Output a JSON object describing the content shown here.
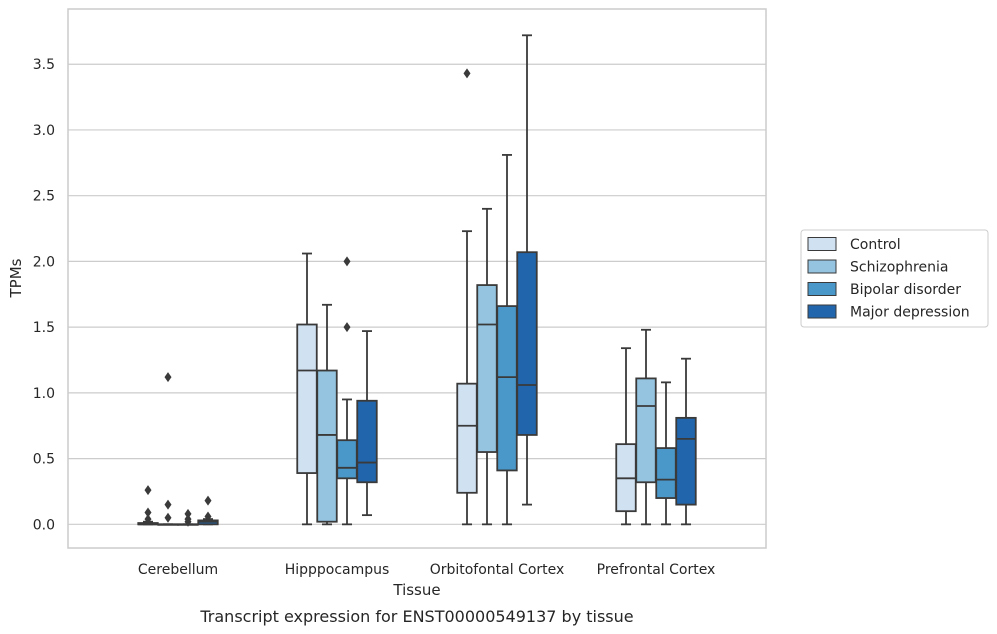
{
  "caption": "Transcript expression for ENST00000549137 by tissue",
  "chart_data": {
    "type": "box",
    "xlabel": "Tissue",
    "ylabel": "TPMs",
    "ylim": [
      -0.18,
      3.92
    ],
    "yticks": [
      "0.0",
      "0.5",
      "1.0",
      "1.5",
      "2.0",
      "2.5",
      "3.0",
      "3.5"
    ],
    "grid": true,
    "legend_position": "right",
    "categories": [
      "Cerebellum",
      "Hipppocampus",
      "Orbitofontal Cortex",
      "Prefrontal Cortex"
    ],
    "series": [
      {
        "name": "Control",
        "color": "#d0e1f2",
        "boxes": [
          {
            "min": 0,
            "q1": 0,
            "median": 0,
            "q3": 0.01,
            "max": 0.02,
            "outliers": [
              0.26,
              0.09,
              0.04
            ]
          },
          {
            "min": 0,
            "q1": 0.39,
            "median": 1.17,
            "q3": 1.52,
            "max": 2.06,
            "outliers": []
          },
          {
            "min": 0,
            "q1": 0.24,
            "median": 0.75,
            "q3": 1.07,
            "max": 2.23,
            "outliers": [
              3.43
            ]
          },
          {
            "min": 0,
            "q1": 0.1,
            "median": 0.35,
            "q3": 0.61,
            "max": 1.34,
            "outliers": []
          }
        ]
      },
      {
        "name": "Schizophrenia",
        "color": "#94c4df",
        "boxes": [
          {
            "min": 0,
            "q1": 0,
            "median": 0,
            "q3": 0,
            "max": 0,
            "outliers": [
              1.12,
              0.15,
              0.05
            ]
          },
          {
            "min": 0,
            "q1": 0.02,
            "median": 0.68,
            "q3": 1.17,
            "max": 1.67,
            "outliers": []
          },
          {
            "min": 0,
            "q1": 0.55,
            "median": 1.52,
            "q3": 1.82,
            "max": 2.4,
            "outliers": []
          },
          {
            "min": 0,
            "q1": 0.32,
            "median": 0.9,
            "q3": 1.11,
            "max": 1.48,
            "outliers": []
          }
        ]
      },
      {
        "name": "Bipolar disorder",
        "color": "#4a98c9",
        "boxes": [
          {
            "min": 0,
            "q1": 0,
            "median": 0,
            "q3": 0,
            "max": 0,
            "outliers": [
              0.08,
              0.04,
              0.02
            ]
          },
          {
            "min": 0,
            "q1": 0.35,
            "median": 0.43,
            "q3": 0.64,
            "max": 0.95,
            "outliers": [
              2.0,
              1.5
            ]
          },
          {
            "min": 0,
            "q1": 0.41,
            "median": 1.12,
            "q3": 1.66,
            "max": 2.81,
            "outliers": []
          },
          {
            "min": 0,
            "q1": 0.2,
            "median": 0.34,
            "q3": 0.58,
            "max": 1.08,
            "outliers": []
          }
        ]
      },
      {
        "name": "Major depression",
        "color": "#2166ac",
        "boxes": [
          {
            "min": 0,
            "q1": 0,
            "median": 0.02,
            "q3": 0.03,
            "max": 0.04,
            "outliers": [
              0.18,
              0.06
            ]
          },
          {
            "min": 0.07,
            "q1": 0.32,
            "median": 0.47,
            "q3": 0.94,
            "max": 1.47,
            "outliers": []
          },
          {
            "min": 0.15,
            "q1": 0.68,
            "median": 1.06,
            "q3": 2.07,
            "max": 3.72,
            "outliers": []
          },
          {
            "min": 0,
            "q1": 0.15,
            "median": 0.65,
            "q3": 0.81,
            "max": 1.26,
            "outliers": []
          }
        ]
      }
    ]
  }
}
